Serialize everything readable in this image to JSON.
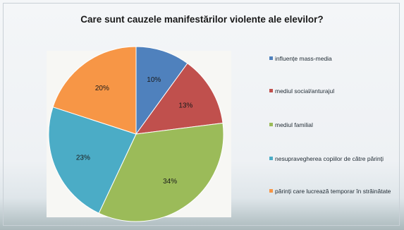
{
  "chart_data": {
    "type": "pie",
    "title": "Care sunt cauzele manifestărilor violente ale elevilor?",
    "slices": [
      {
        "name": "influențe mass-media",
        "value": 10,
        "label": "10%",
        "color": "#4f81bd"
      },
      {
        "name": "mediul social/anturajul",
        "value": 13,
        "label": "13%",
        "color": "#c0504d"
      },
      {
        "name": "mediul familial",
        "value": 34,
        "label": "34%",
        "color": "#9bbb59"
      },
      {
        "name": "nesupravegherea copiilor de către părinți",
        "value": 23,
        "label": "23%",
        "color": "#4bacc6"
      },
      {
        "name": "părinți care lucrează temporar în străinătate",
        "value": 20,
        "label": "20%",
        "color": "#f79646"
      }
    ],
    "start": "top",
    "direction": "clockwise",
    "legend_position": "right"
  }
}
